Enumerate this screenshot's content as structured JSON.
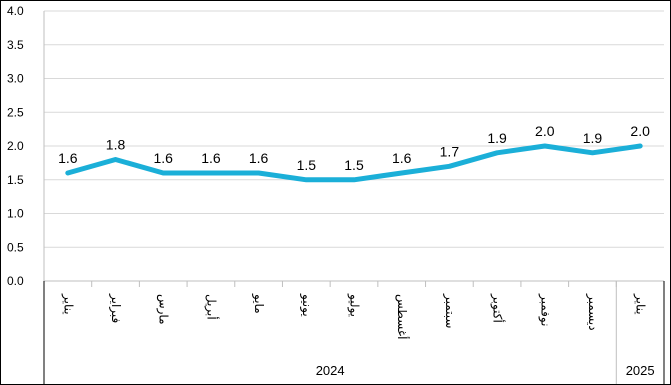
{
  "chart_data": {
    "type": "line",
    "title": "",
    "xlabel": "",
    "ylabel": "",
    "ylim": [
      0,
      4
    ],
    "yticks": [
      "0.0",
      "0.5",
      "1.0",
      "1.5",
      "2.0",
      "2.5",
      "3.0",
      "3.5",
      "4.0"
    ],
    "categories": [
      "يناير",
      "فبراير",
      "مارس",
      "أبريل",
      "مايو",
      "يونيو",
      "يوليو",
      "أغسطس",
      "سبتمبر",
      "أكتوبر",
      "نوفمبر",
      "ديسمبر",
      "يناير"
    ],
    "groups": [
      {
        "label": "2024",
        "count": 12
      },
      {
        "label": "2025",
        "count": 1
      }
    ],
    "series": [
      {
        "values": [
          1.6,
          1.8,
          1.6,
          1.6,
          1.6,
          1.5,
          1.5,
          1.6,
          1.7,
          1.9,
          2.0,
          1.9,
          2.0
        ],
        "labels": [
          "1.6",
          "1.8",
          "1.6",
          "1.6",
          "1.6",
          "1.5",
          "1.5",
          "1.6",
          "1.7",
          "1.9",
          "2.0",
          "1.9",
          "2.0"
        ]
      }
    ],
    "grid": true,
    "legend": "none",
    "colors": {
      "line": "#1BAFD8",
      "grid": "#D9D9D9",
      "axis": "#BFBFBF",
      "frame": "#000000"
    }
  }
}
